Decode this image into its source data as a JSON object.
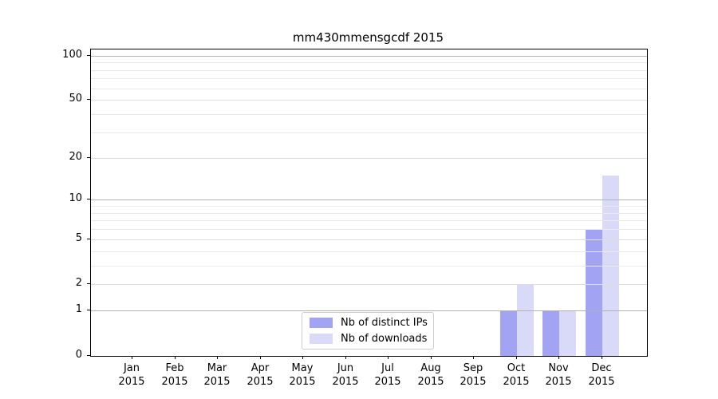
{
  "figure": {
    "background": "#ffffff"
  },
  "chart_data": {
    "type": "bar",
    "title": "mm430mmensgcdf 2015",
    "categories": [
      {
        "month": "Jan",
        "year": "2015"
      },
      {
        "month": "Feb",
        "year": "2015"
      },
      {
        "month": "Mar",
        "year": "2015"
      },
      {
        "month": "Apr",
        "year": "2015"
      },
      {
        "month": "May",
        "year": "2015"
      },
      {
        "month": "Jun",
        "year": "2015"
      },
      {
        "month": "Jul",
        "year": "2015"
      },
      {
        "month": "Aug",
        "year": "2015"
      },
      {
        "month": "Sep",
        "year": "2015"
      },
      {
        "month": "Oct",
        "year": "2015"
      },
      {
        "month": "Nov",
        "year": "2015"
      },
      {
        "month": "Dec",
        "year": "2015"
      }
    ],
    "series": [
      {
        "name": "Nb of distinct IPs",
        "color": "#a3a3f4",
        "values": [
          0,
          0,
          0,
          0,
          0,
          0,
          0,
          0,
          0,
          1,
          1,
          6
        ]
      },
      {
        "name": "Nb of downloads",
        "color": "#d9d9f8",
        "values": [
          0,
          0,
          0,
          0,
          0,
          0,
          0,
          0,
          0,
          2,
          1,
          15
        ]
      }
    ],
    "yscale": "log1p",
    "ylim": [
      0,
      110
    ],
    "yticks": [
      0,
      1,
      2,
      5,
      10,
      20,
      50,
      100
    ],
    "grid": {
      "major_values": [
        1,
        10,
        100
      ],
      "labeled_minor_values": [
        2,
        5,
        20,
        50
      ],
      "minor_values": [
        3,
        4,
        6,
        7,
        8,
        9,
        30,
        40,
        60,
        70,
        80,
        90
      ],
      "major_color": "#b2b2b2",
      "labeled_minor_color": "#dedede",
      "minor_color": "#e9e9e9"
    },
    "legend_position": "lower center"
  }
}
